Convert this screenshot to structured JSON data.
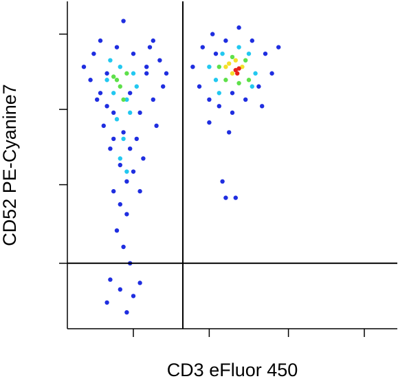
{
  "chart_data": {
    "type": "scatter",
    "x_label": "CD3 eFluor 450",
    "y_label": "CD52 PE-Cyanine7",
    "xlim": [
      0,
      100
    ],
    "ylim": [
      0,
      100
    ],
    "xticks": [
      20,
      43,
      67,
      90
    ],
    "yticks": [
      20,
      44,
      67,
      90
    ],
    "quadrant_gates": {
      "x": 35,
      "y": 20
    },
    "series": [
      {
        "color": "#1f2ee0",
        "x": [
          5,
          7,
          8,
          9,
          10,
          11,
          12,
          13,
          14,
          15,
          16,
          17,
          18,
          19,
          20,
          21,
          22,
          23,
          24,
          25,
          26,
          27,
          28,
          29,
          14,
          16,
          18,
          15,
          17,
          19,
          13,
          16,
          20,
          12,
          22,
          18,
          24,
          10,
          12,
          20,
          22,
          19,
          14,
          26,
          30,
          17,
          38,
          40,
          41,
          43,
          44,
          46,
          48,
          50,
          52,
          54,
          56,
          58,
          60,
          62,
          64,
          45,
          59,
          50,
          48,
          47,
          51,
          43,
          49
        ],
        "y": [
          80,
          76,
          84,
          70,
          88,
          62,
          78,
          55,
          66,
          86,
          50,
          60,
          45,
          72,
          84,
          58,
          66,
          52,
          78,
          86,
          70,
          62,
          82,
          74,
          42,
          38,
          35,
          30,
          25,
          20,
          15,
          12,
          10,
          8,
          14,
          5,
          80,
          72,
          68,
          48,
          42,
          55,
          58,
          88,
          78,
          94,
          80,
          74,
          86,
          70,
          90,
          68,
          88,
          72,
          92,
          70,
          88,
          74,
          84,
          78,
          86,
          84,
          68,
          66,
          40,
          45,
          40,
          63,
          60
        ]
      },
      {
        "color": "#22c8f0",
        "x": [
          12,
          14,
          16,
          18,
          20,
          15,
          17,
          19,
          13,
          21,
          16,
          18,
          43,
          45,
          47,
          55,
          57,
          46,
          52,
          56
        ],
        "y": [
          76,
          72,
          80,
          70,
          78,
          64,
          58,
          66,
          82,
          74,
          52,
          48,
          80,
          76,
          84,
          84,
          78,
          72,
          86,
          74
        ]
      },
      {
        "color": "#5ee04a",
        "x": [
          14,
          16,
          18,
          17,
          15,
          46,
          48,
          50,
          54,
          55,
          52
        ],
        "y": [
          77,
          74,
          78,
          70,
          76,
          80,
          76,
          83,
          82,
          76,
          75
        ]
      },
      {
        "color": "#f4e02a",
        "x": [
          48,
          50,
          53,
          51,
          49
        ],
        "y": [
          80,
          78,
          80,
          82,
          81
        ]
      },
      {
        "color": "#e8201a",
        "x": [
          51,
          52,
          51.5
        ],
        "y": [
          79,
          79.5,
          78
        ]
      }
    ]
  }
}
